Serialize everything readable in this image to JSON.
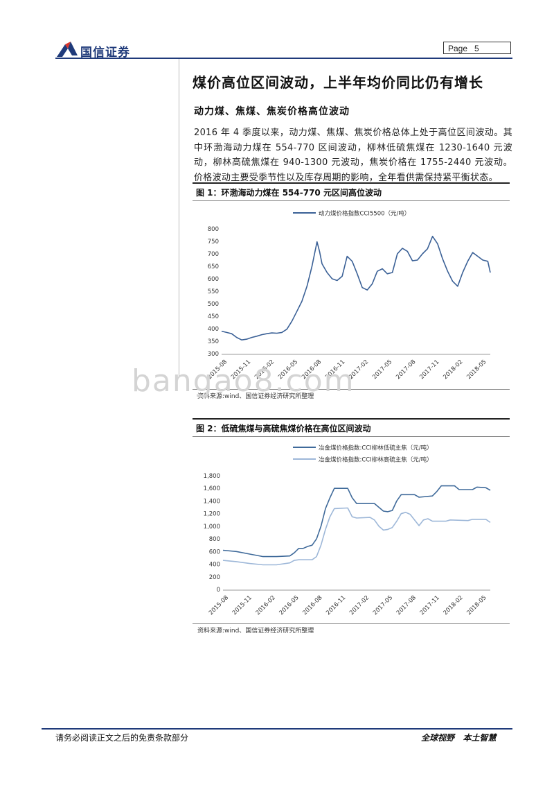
{
  "header": {
    "brand": "国信证券",
    "page_label": "Page",
    "page_number": "5",
    "brand_color": "#1f3a7a",
    "logo_accent": "#d9342b"
  },
  "section": {
    "heading": "煤价高位区间波动，上半年均价同比仍有增长",
    "subheading": "动力煤、焦煤、焦炭价格高位波动",
    "paragraph": "2016 年 4 季度以来，动力煤、焦煤、焦炭价格总体上处于高位区间波动。其中环渤海动力煤在 554-770 区间波动，柳林低硫焦煤在 1230-1640 元波动，柳林高硫焦煤在 940-1300 元波动，焦炭价格在 1755-2440 元波动。价格波动主要受季节性以及库存周期的影响，全年看供需保持紧平衡状态。"
  },
  "figures": [
    {
      "title": "图 1：环渤海动力煤在 554-770 元区间高位波动",
      "source": "资料来源:wind、国信证券经济研究所整理"
    },
    {
      "title": "图 2：低硫焦煤与高硫焦煤价格在高位区间波动",
      "source": "资料来源:wind、国信证券经济研究所整理"
    }
  ],
  "chart_data": [
    {
      "type": "line",
      "title": "",
      "xlabel": "",
      "ylabel": "",
      "ylim": [
        300,
        800
      ],
      "yticks": [
        "800",
        "750",
        "700",
        "650",
        "600",
        "550",
        "500",
        "450",
        "400",
        "350",
        "300"
      ],
      "xticks": [
        "2015-08",
        "2015-11",
        "2016-02",
        "2016-05",
        "2016-08",
        "2016-11",
        "2017-02",
        "2017-05",
        "2017-08",
        "2017-11",
        "2018-02",
        "2018-05"
      ],
      "legend_position": "top",
      "grid": false,
      "series": [
        {
          "name": "动力煤价格指数CCI5500（元/吨）",
          "color": "#3a6096",
          "values": [
            [
              0,
              390
            ],
            [
              1,
              385
            ],
            [
              2,
              380
            ],
            [
              3,
              365
            ],
            [
              4,
              355
            ],
            [
              5,
              358
            ],
            [
              6,
              365
            ],
            [
              7,
              370
            ],
            [
              8,
              376
            ],
            [
              9,
              380
            ],
            [
              10,
              383
            ],
            [
              11,
              382
            ],
            [
              12,
              385
            ],
            [
              13,
              398
            ],
            [
              14,
              430
            ],
            [
              15,
              470
            ],
            [
              16,
              510
            ],
            [
              17,
              570
            ],
            [
              17.5,
              610
            ],
            [
              18,
              650
            ],
            [
              18.5,
              700
            ],
            [
              19,
              748
            ],
            [
              19.5,
              710
            ],
            [
              20,
              660
            ],
            [
              21,
              625
            ],
            [
              22,
              600
            ],
            [
              23,
              593
            ],
            [
              24,
              610
            ],
            [
              25,
              690
            ],
            [
              26,
              670
            ],
            [
              27,
              620
            ],
            [
              28,
              565
            ],
            [
              29,
              555
            ],
            [
              30,
              580
            ],
            [
              31,
              630
            ],
            [
              32,
              640
            ],
            [
              33,
              620
            ],
            [
              34,
              625
            ],
            [
              35,
              700
            ],
            [
              36,
              722
            ],
            [
              37,
              710
            ],
            [
              38,
              672
            ],
            [
              39,
              675
            ],
            [
              40,
              700
            ],
            [
              41,
              720
            ],
            [
              42,
              770
            ],
            [
              43,
              740
            ],
            [
              44,
              680
            ],
            [
              45,
              630
            ],
            [
              46,
              590
            ],
            [
              47,
              570
            ],
            [
              48,
              625
            ],
            [
              49,
              670
            ],
            [
              50,
              705
            ],
            [
              51,
              690
            ],
            [
              52,
              675
            ],
            [
              53,
              670
            ],
            [
              53.5,
              625
            ]
          ]
        }
      ]
    },
    {
      "type": "line",
      "title": "",
      "xlabel": "",
      "ylabel": "",
      "ylim": [
        0,
        1800
      ],
      "yticks": [
        "1,800",
        "1,600",
        "1,400",
        "1,200",
        "1,000",
        "800",
        "600",
        "400",
        "200",
        "0"
      ],
      "xticks": [
        "2015-08",
        "2015-11",
        "2016-02",
        "2016-05",
        "2016-08",
        "2016-11",
        "2017-02",
        "2017-05",
        "2017-08",
        "2017-11",
        "2018-02",
        "2018-05"
      ],
      "legend_position": "top",
      "grid": false,
      "series": [
        {
          "name": "冶金煤价格指数:CCI柳林低硫主焦（元/吨）",
          "color": "#3f6a9a",
          "values": [
            [
              0,
              620
            ],
            [
              3,
              600
            ],
            [
              6,
              560
            ],
            [
              9,
              520
            ],
            [
              12,
              520
            ],
            [
              15,
              530
            ],
            [
              16,
              580
            ],
            [
              17,
              650
            ],
            [
              18,
              650
            ],
            [
              19,
              680
            ],
            [
              20,
              700
            ],
            [
              21,
              800
            ],
            [
              22,
              1000
            ],
            [
              23,
              1280
            ],
            [
              24,
              1450
            ],
            [
              25,
              1600
            ],
            [
              28,
              1600
            ],
            [
              29,
              1450
            ],
            [
              30,
              1360
            ],
            [
              34,
              1360
            ],
            [
              35,
              1300
            ],
            [
              36,
              1240
            ],
            [
              37,
              1230
            ],
            [
              38,
              1250
            ],
            [
              39,
              1400
            ],
            [
              40,
              1500
            ],
            [
              43,
              1500
            ],
            [
              44,
              1460
            ],
            [
              47,
              1480
            ],
            [
              48,
              1550
            ],
            [
              49,
              1640
            ],
            [
              52,
              1640
            ],
            [
              53,
              1580
            ],
            [
              56,
              1580
            ],
            [
              57,
              1620
            ],
            [
              59,
              1610
            ],
            [
              60,
              1570
            ]
          ]
        },
        {
          "name": "冶金煤价格指数:CCI柳林高硫主焦（元/吨）",
          "color": "#9db7d8",
          "values": [
            [
              0,
              460
            ],
            [
              3,
              440
            ],
            [
              6,
              410
            ],
            [
              9,
              390
            ],
            [
              12,
              390
            ],
            [
              15,
              420
            ],
            [
              16,
              460
            ],
            [
              17,
              470
            ],
            [
              20,
              470
            ],
            [
              21,
              520
            ],
            [
              22,
              700
            ],
            [
              23,
              950
            ],
            [
              24,
              1150
            ],
            [
              25,
              1280
            ],
            [
              28,
              1290
            ],
            [
              29,
              1150
            ],
            [
              30,
              1130
            ],
            [
              33,
              1140
            ],
            [
              34,
              1100
            ],
            [
              35,
              1000
            ],
            [
              36,
              940
            ],
            [
              37,
              950
            ],
            [
              38,
              980
            ],
            [
              39,
              1080
            ],
            [
              40,
              1200
            ],
            [
              41,
              1220
            ],
            [
              42,
              1190
            ],
            [
              43,
              1100
            ],
            [
              44,
              1010
            ],
            [
              45,
              1100
            ],
            [
              46,
              1120
            ],
            [
              47,
              1080
            ],
            [
              50,
              1080
            ],
            [
              51,
              1100
            ],
            [
              55,
              1090
            ],
            [
              56,
              1110
            ],
            [
              59,
              1110
            ],
            [
              60,
              1060
            ]
          ]
        }
      ]
    }
  ],
  "watermark": "bangao8.com",
  "footer": {
    "disclaimer": "请务必阅读正文之后的免责条款部分",
    "slogan": "全球视野   本土智慧"
  }
}
